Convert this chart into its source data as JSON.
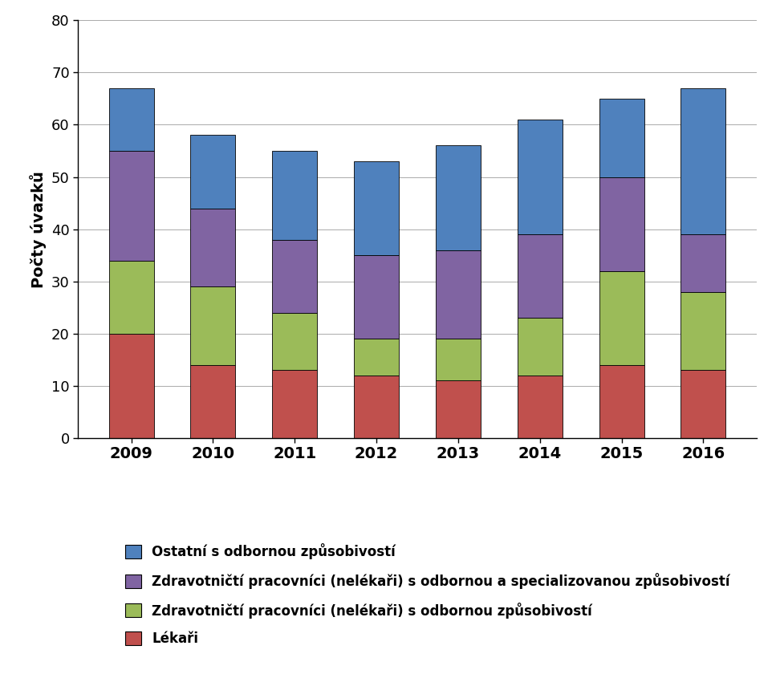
{
  "years": [
    "2009",
    "2010",
    "2011",
    "2012",
    "2013",
    "2014",
    "2015",
    "2016"
  ],
  "lekari": [
    20,
    14,
    13,
    12,
    11,
    12,
    14,
    13
  ],
  "zdravotnici_odbornou": [
    14,
    15,
    11,
    7,
    8,
    11,
    18,
    15
  ],
  "zdravotnici_spec": [
    21,
    15,
    14,
    16,
    17,
    16,
    18,
    11
  ],
  "ostatni": [
    12,
    14,
    17,
    18,
    20,
    22,
    15,
    28
  ],
  "color_lekari": "#c0504d",
  "color_zdravotnici_odbornou": "#9bbb59",
  "color_zdravotnici_spec": "#8064a2",
  "color_ostatni": "#4f81bd",
  "ylabel": "Počty úvazků",
  "ylim": [
    0,
    80
  ],
  "yticks": [
    0,
    10,
    20,
    30,
    40,
    50,
    60,
    70,
    80
  ],
  "legend_ostatni": "Ostatní s odbornou způsobivostí",
  "legend_zdravotnici_spec": "Zdravotničtí pracovníci (nelékaři) s odbornou a specializovanou způsobivostí",
  "legend_zdravotnici_odbornou": "Zdravotničtí pracovníci (nelékaři) s odbornou způsobivostí",
  "legend_lekari": "Lékaři",
  "bar_width": 0.55,
  "figsize": [
    9.72,
    8.4
  ],
  "dpi": 100
}
